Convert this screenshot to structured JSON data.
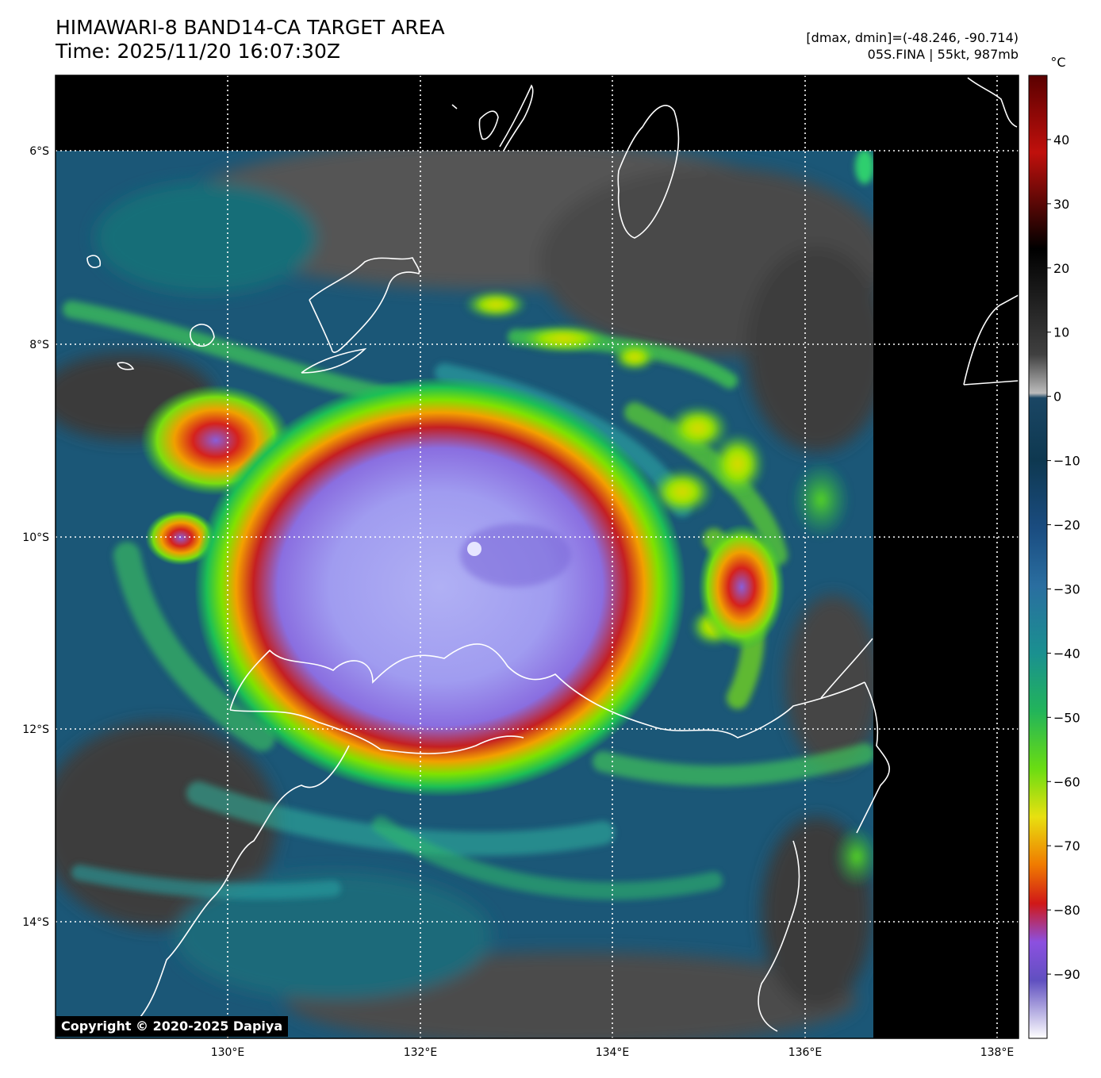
{
  "header": {
    "title": "HIMAWARI-8 BAND14-CA TARGET AREA",
    "time": "Time: 2025/11/20 16:07:30Z",
    "range": "[dmax, dmin]=(-48.246, -90.714)",
    "storm": "05S.FINA | 55kt, 987mb"
  },
  "map": {
    "lon_ticks": [
      "130°E",
      "132°E",
      "134°E",
      "136°E",
      "138°E"
    ],
    "lat_ticks": [
      "6°S",
      "8°S",
      "10°S",
      "12°S",
      "14°S"
    ],
    "gridlines": "dotted white"
  },
  "colorbar": {
    "unit": "°C",
    "ticks": [
      "40",
      "30",
      "20",
      "10",
      "0",
      "−10",
      "−20",
      "−30",
      "−40",
      "−50",
      "−60",
      "−70",
      "−80",
      "−90"
    ],
    "range": [
      -100,
      50
    ]
  },
  "copyright": "Copyright © 2020-2025 Dapiya"
}
